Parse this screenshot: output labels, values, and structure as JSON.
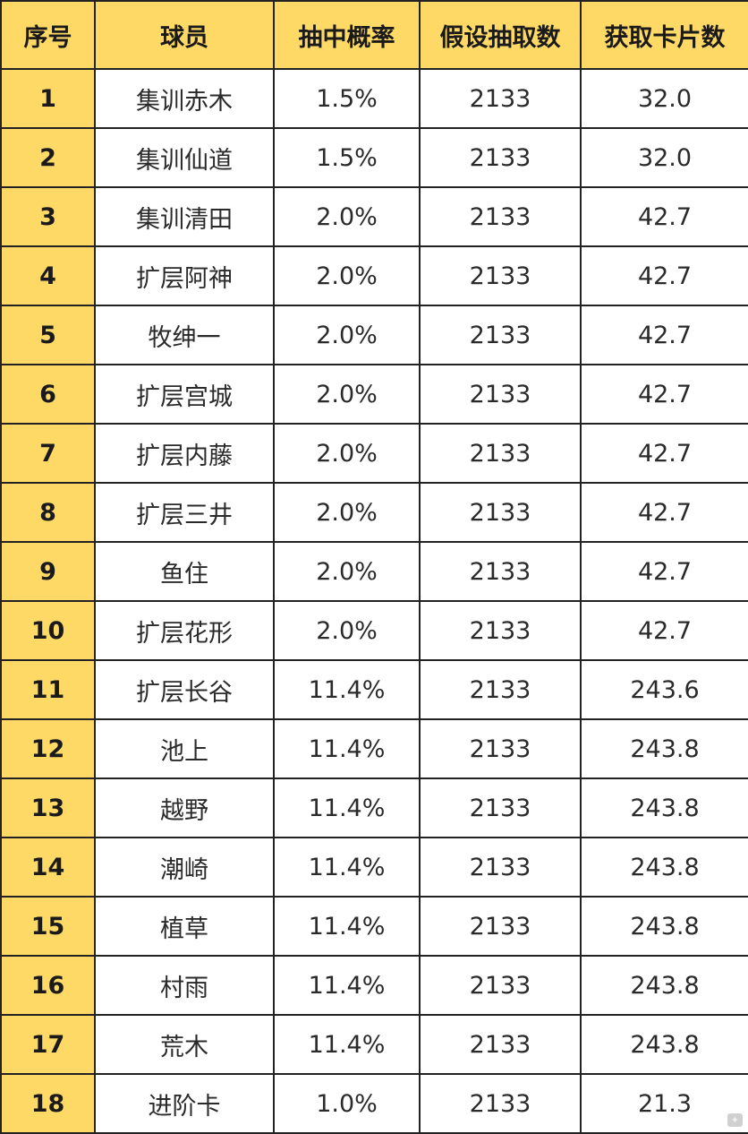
{
  "colors": {
    "header_bg": "#ffd966",
    "index_bg": "#ffd966",
    "cell_bg": "#ffffff",
    "border": "#222222"
  },
  "table": {
    "headers": [
      "序号",
      "球员",
      "抽中概率",
      "假设抽取数",
      "获取卡片数"
    ],
    "rows": [
      [
        "1",
        "集训赤木",
        "1.5%",
        "2133",
        "32.0"
      ],
      [
        "2",
        "集训仙道",
        "1.5%",
        "2133",
        "32.0"
      ],
      [
        "3",
        "集训清田",
        "2.0%",
        "2133",
        "42.7"
      ],
      [
        "4",
        "扩层阿神",
        "2.0%",
        "2133",
        "42.7"
      ],
      [
        "5",
        "牧绅一",
        "2.0%",
        "2133",
        "42.7"
      ],
      [
        "6",
        "扩层宫城",
        "2.0%",
        "2133",
        "42.7"
      ],
      [
        "7",
        "扩层内藤",
        "2.0%",
        "2133",
        "42.7"
      ],
      [
        "8",
        "扩层三井",
        "2.0%",
        "2133",
        "42.7"
      ],
      [
        "9",
        "鱼住",
        "2.0%",
        "2133",
        "42.7"
      ],
      [
        "10",
        "扩层花形",
        "2.0%",
        "2133",
        "42.7"
      ],
      [
        "11",
        "扩层长谷",
        "11.4%",
        "2133",
        "243.6"
      ],
      [
        "12",
        "池上",
        "11.4%",
        "2133",
        "243.8"
      ],
      [
        "13",
        "越野",
        "11.4%",
        "2133",
        "243.8"
      ],
      [
        "14",
        "潮崎",
        "11.4%",
        "2133",
        "243.8"
      ],
      [
        "15",
        "植草",
        "11.4%",
        "2133",
        "243.8"
      ],
      [
        "16",
        "村雨",
        "11.4%",
        "2133",
        "243.8"
      ],
      [
        "17",
        "荒木",
        "11.4%",
        "2133",
        "243.8"
      ],
      [
        "18",
        "进阶卡",
        "1.0%",
        "2133",
        "21.3"
      ]
    ]
  }
}
